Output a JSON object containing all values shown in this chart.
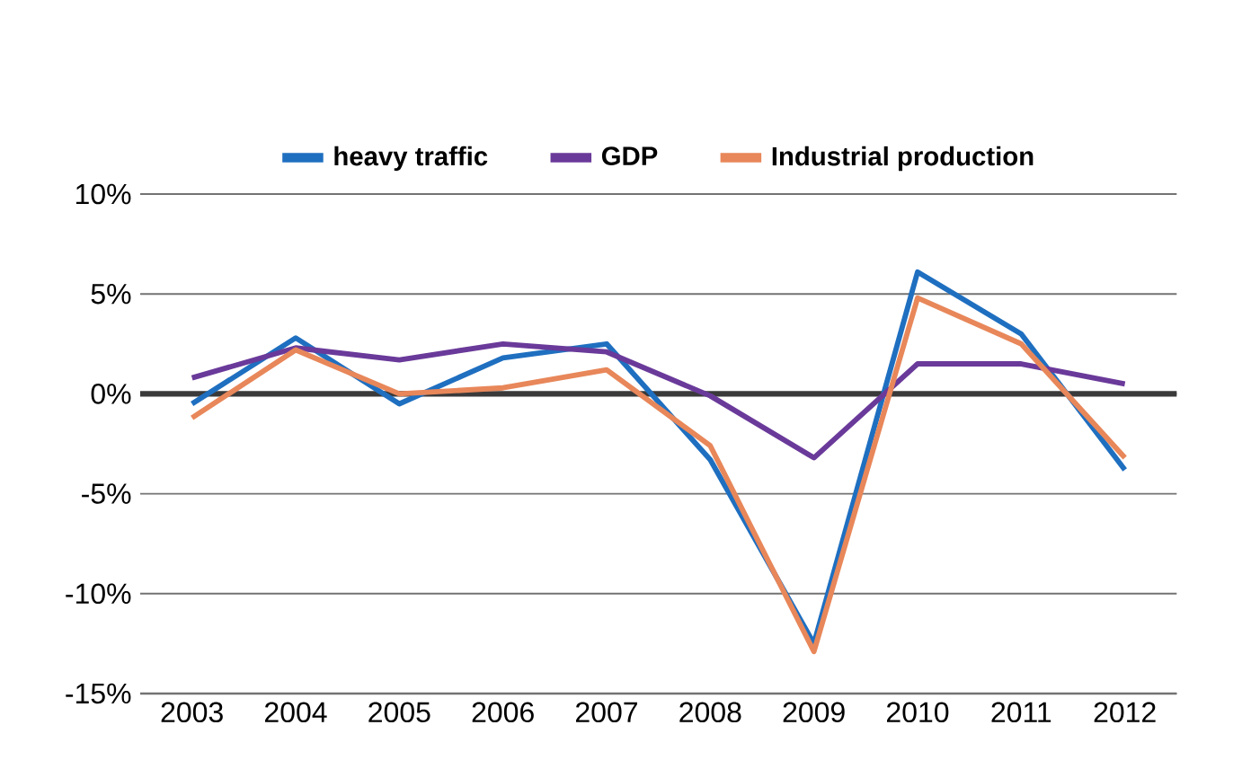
{
  "chart_data": {
    "type": "line",
    "categories": [
      "2003",
      "2004",
      "2005",
      "2006",
      "2007",
      "2008",
      "2009",
      "2010",
      "2011",
      "2012"
    ],
    "series": [
      {
        "name": "heavy traffic",
        "color": "#1f6fc0",
        "values": [
          -0.5,
          2.8,
          -0.5,
          1.8,
          2.5,
          -3.3,
          -12.5,
          6.1,
          3.0,
          -3.8
        ]
      },
      {
        "name": "GDP",
        "color": "#6a3a9a",
        "values": [
          0.8,
          2.3,
          1.7,
          2.5,
          2.1,
          -0.1,
          -3.2,
          1.5,
          1.5,
          0.5
        ]
      },
      {
        "name": "Industrial production",
        "color": "#e8875a",
        "values": [
          -1.2,
          2.2,
          0.0,
          0.3,
          1.2,
          -2.6,
          -12.9,
          4.8,
          2.5,
          -3.2
        ]
      }
    ],
    "ylim": [
      -15,
      10
    ],
    "yticks": [
      {
        "value": -15,
        "label": "-15%"
      },
      {
        "value": -10,
        "label": "-10%"
      },
      {
        "value": -5,
        "label": "-5%"
      },
      {
        "value": 0,
        "label": "0%"
      },
      {
        "value": 5,
        "label": "5%"
      },
      {
        "value": 10,
        "label": "10%"
      }
    ],
    "ref_lines": [
      {
        "axis": "y",
        "value": 0,
        "color": "#3a3a3a"
      }
    ],
    "grid": "y",
    "legend": "top",
    "marker": "none",
    "line_style": "solid"
  }
}
